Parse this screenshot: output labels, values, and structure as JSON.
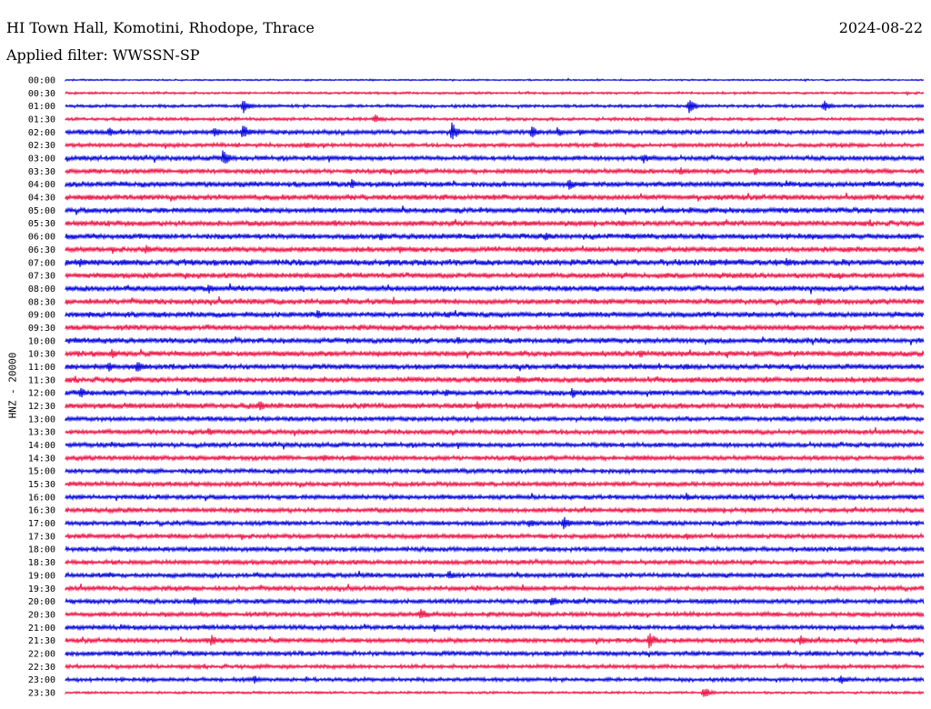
{
  "header": {
    "station": "HI Town Hall, Komotini, Rhodope, Thrace",
    "date": "2024-08-22",
    "filter": "Applied filter: WWSSN-SP"
  },
  "channel_label": "HNZ - 20000",
  "chart_data": {
    "type": "line",
    "title": "HI Town Hall, Komotini, Rhodope, Thrace",
    "subtitle": "Applied filter: WWSSN-SP",
    "ylabel": "HNZ - 20000",
    "xlabel": "",
    "row_labels": [
      "00:00",
      "00:30",
      "01:00",
      "01:30",
      "02:00",
      "02:30",
      "03:00",
      "03:30",
      "04:00",
      "04:30",
      "05:00",
      "05:30",
      "06:00",
      "06:30",
      "07:00",
      "07:30",
      "08:00",
      "08:30",
      "09:00",
      "09:30",
      "10:00",
      "10:30",
      "11:00",
      "11:30",
      "12:00",
      "12:30",
      "13:00",
      "13:30",
      "14:00",
      "14:30",
      "15:00",
      "15:30",
      "16:00",
      "16:30",
      "17:00",
      "17:30",
      "18:00",
      "18:30",
      "19:00",
      "19:30",
      "20:00",
      "20:30",
      "21:00",
      "21:30",
      "22:00",
      "22:30",
      "23:00",
      "23:30"
    ],
    "row_colors": [
      "#0000dd",
      "#ee1144"
    ],
    "minutes_per_row": 30,
    "noise_amplitude": [
      1.0,
      1.5,
      2.0,
      2.0,
      3.0,
      2.5,
      3.0,
      3.0,
      3.5,
      3.5,
      3.5,
      3.5,
      3.5,
      3.5,
      4.0,
      3.5,
      3.5,
      3.5,
      3.5,
      3.5,
      3.5,
      3.5,
      3.5,
      3.5,
      3.5,
      3.5,
      3.0,
      3.0,
      3.0,
      3.0,
      3.0,
      3.0,
      3.0,
      3.0,
      3.0,
      3.0,
      3.0,
      3.0,
      3.0,
      3.0,
      3.0,
      3.0,
      3.0,
      3.0,
      3.0,
      2.5,
      2.5,
      1.5
    ],
    "events": [
      {
        "row": 2,
        "minute": 6.2,
        "amp": 9
      },
      {
        "row": 2,
        "minute": 21.8,
        "amp": 8
      },
      {
        "row": 2,
        "minute": 26.5,
        "amp": 7
      },
      {
        "row": 3,
        "minute": 10.8,
        "amp": 6
      },
      {
        "row": 4,
        "minute": 1.5,
        "amp": 6
      },
      {
        "row": 4,
        "minute": 5.2,
        "amp": 7
      },
      {
        "row": 4,
        "minute": 6.2,
        "amp": 9
      },
      {
        "row": 4,
        "minute": 13.5,
        "amp": 11
      },
      {
        "row": 4,
        "minute": 16.3,
        "amp": 7
      },
      {
        "row": 4,
        "minute": 17.2,
        "amp": 6
      },
      {
        "row": 4,
        "minute": 18.0,
        "amp": 5
      },
      {
        "row": 5,
        "minute": 8.4,
        "amp": 4
      },
      {
        "row": 5,
        "minute": 18.5,
        "amp": 4
      },
      {
        "row": 6,
        "minute": 5.5,
        "amp": 10
      },
      {
        "row": 6,
        "minute": 20.2,
        "amp": 6
      },
      {
        "row": 7,
        "minute": 21.5,
        "amp": 5
      },
      {
        "row": 7,
        "minute": 24.1,
        "amp": 5
      },
      {
        "row": 8,
        "minute": 10.0,
        "amp": 6
      },
      {
        "row": 8,
        "minute": 17.6,
        "amp": 7
      },
      {
        "row": 9,
        "minute": 0.8,
        "amp": 4
      },
      {
        "row": 11,
        "minute": 9.4,
        "amp": 5
      },
      {
        "row": 12,
        "minute": 11.0,
        "amp": 6
      },
      {
        "row": 12,
        "minute": 16.8,
        "amp": 6
      },
      {
        "row": 13,
        "minute": 2.8,
        "amp": 6
      },
      {
        "row": 13,
        "minute": 11.7,
        "amp": 5
      },
      {
        "row": 14,
        "minute": 0.5,
        "amp": 6
      },
      {
        "row": 14,
        "minute": 11.3,
        "amp": 5
      },
      {
        "row": 14,
        "minute": 25.2,
        "amp": 6
      },
      {
        "row": 16,
        "minute": 5.0,
        "amp": 6
      },
      {
        "row": 17,
        "minute": 26.3,
        "amp": 5
      },
      {
        "row": 18,
        "minute": 8.8,
        "amp": 6
      },
      {
        "row": 20,
        "minute": 13.7,
        "amp": 5
      },
      {
        "row": 21,
        "minute": 1.6,
        "amp": 6
      },
      {
        "row": 21,
        "minute": 20.1,
        "amp": 5
      },
      {
        "row": 22,
        "minute": 1.5,
        "amp": 6
      },
      {
        "row": 22,
        "minute": 2.5,
        "amp": 9
      },
      {
        "row": 23,
        "minute": 15.8,
        "amp": 6
      },
      {
        "row": 24,
        "minute": 0.5,
        "amp": 7
      },
      {
        "row": 24,
        "minute": 13.3,
        "amp": 5
      },
      {
        "row": 24,
        "minute": 17.7,
        "amp": 7
      },
      {
        "row": 25,
        "minute": 6.8,
        "amp": 7
      },
      {
        "row": 25,
        "minute": 14.4,
        "amp": 6
      },
      {
        "row": 27,
        "minute": 5.0,
        "amp": 5
      },
      {
        "row": 29,
        "minute": 9.0,
        "amp": 5
      },
      {
        "row": 29,
        "minute": 10.0,
        "amp": 5
      },
      {
        "row": 32,
        "minute": 21.7,
        "amp": 5
      },
      {
        "row": 34,
        "minute": 16.2,
        "amp": 6
      },
      {
        "row": 34,
        "minute": 17.4,
        "amp": 9
      },
      {
        "row": 35,
        "minute": 21.7,
        "amp": 5
      },
      {
        "row": 38,
        "minute": 13.4,
        "amp": 6
      },
      {
        "row": 40,
        "minute": 4.5,
        "amp": 6
      },
      {
        "row": 40,
        "minute": 16.4,
        "amp": 5
      },
      {
        "row": 40,
        "minute": 17.0,
        "amp": 7
      },
      {
        "row": 41,
        "minute": 12.4,
        "amp": 8
      },
      {
        "row": 42,
        "minute": 12.9,
        "amp": 5
      },
      {
        "row": 43,
        "minute": 5.1,
        "amp": 7
      },
      {
        "row": 43,
        "minute": 20.4,
        "amp": 10
      },
      {
        "row": 43,
        "minute": 25.7,
        "amp": 7
      },
      {
        "row": 46,
        "minute": 6.6,
        "amp": 5
      },
      {
        "row": 46,
        "minute": 27.1,
        "amp": 6
      },
      {
        "row": 47,
        "minute": 22.3,
        "amp": 7
      }
    ]
  }
}
